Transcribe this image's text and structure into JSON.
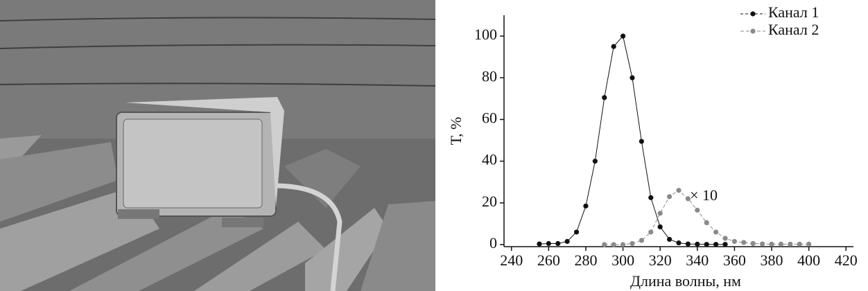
{
  "chart_data": {
    "type": "line",
    "xlabel": "Длина волны, нм",
    "ylabel": "Т, %",
    "annotation": "× 10",
    "xlim": [
      236,
      424
    ],
    "ylim": [
      -1,
      110
    ],
    "xticks": [
      240,
      260,
      280,
      300,
      320,
      340,
      360,
      380,
      400,
      420
    ],
    "yticks": [
      0,
      20,
      40,
      60,
      80,
      100
    ],
    "legend": "top-right",
    "series": [
      {
        "name": "Канал 1",
        "color": "#111111",
        "dashed": false,
        "x": [
          255,
          260,
          265,
          270,
          275,
          280,
          285,
          290,
          295,
          300,
          305,
          310,
          315,
          320,
          325,
          330,
          335,
          340,
          345,
          350,
          355
        ],
        "values": [
          0.3,
          0.5,
          0.5,
          1.5,
          6,
          18.5,
          40,
          70.5,
          95,
          100,
          80,
          49.5,
          22.5,
          8.5,
          2.5,
          0.8,
          0.3,
          0.2,
          0.1,
          0.1,
          0.1
        ]
      },
      {
        "name": "Канал 2",
        "color": "#8a8a8a",
        "dashed": true,
        "x": [
          290,
          295,
          300,
          305,
          310,
          315,
          320,
          325,
          330,
          335,
          340,
          345,
          350,
          355,
          360,
          365,
          370,
          375,
          380,
          385,
          390,
          395,
          400
        ],
        "values": [
          0,
          0,
          0,
          0.5,
          2,
          6,
          15,
          23,
          26,
          22,
          16.5,
          10.5,
          6,
          3,
          1.5,
          1,
          0.5,
          0.3,
          0.2,
          0.2,
          0.2,
          0.2,
          0.2
        ]
      }
    ]
  }
}
